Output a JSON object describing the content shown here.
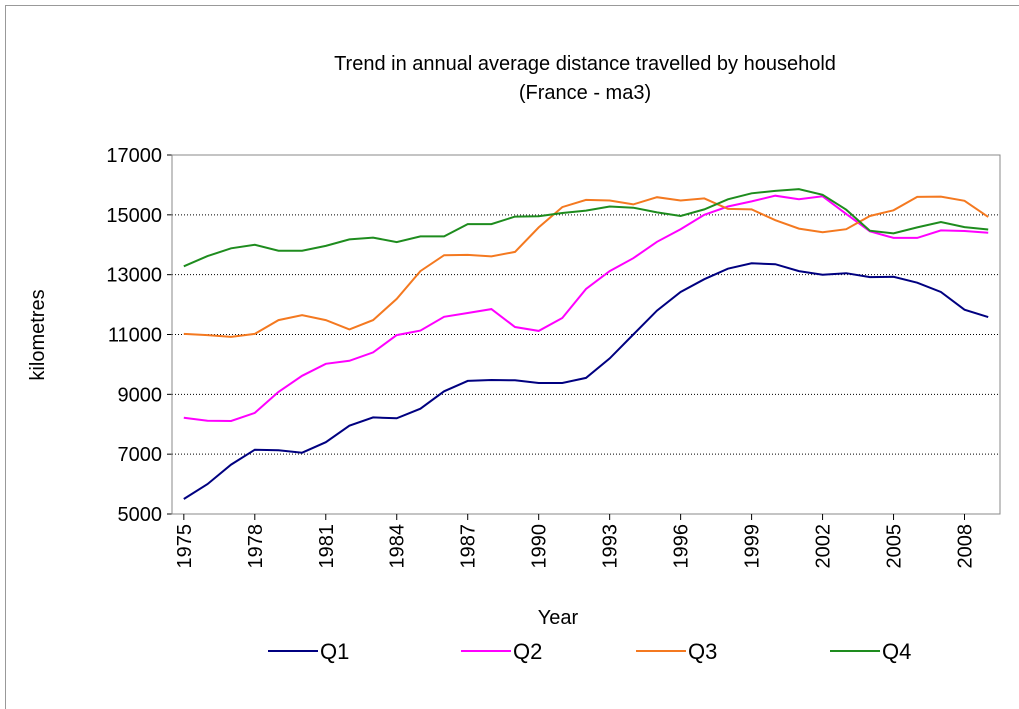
{
  "chart_data": {
    "type": "line",
    "title": "Trend in annual average distance travelled by household",
    "subtitle": "(France - ma3)",
    "x_label": "Year",
    "y_label": "kilometres",
    "x": [
      1975,
      1976,
      1977,
      1978,
      1979,
      1980,
      1981,
      1982,
      1983,
      1984,
      1985,
      1986,
      1987,
      1988,
      1989,
      1990,
      1991,
      1992,
      1993,
      1994,
      1995,
      1996,
      1997,
      1998,
      1999,
      2000,
      2001,
      2002,
      2003,
      2004,
      2005,
      2006,
      2007,
      2008,
      2009
    ],
    "xlim": [
      1974.5,
      2009.5
    ],
    "xticks": [
      1975,
      1978,
      1981,
      1984,
      1987,
      1990,
      1993,
      1996,
      1999,
      2002,
      2005,
      2008
    ],
    "ylim": [
      5000,
      17000
    ],
    "yticks": [
      5000,
      7000,
      9000,
      11000,
      13000,
      15000,
      17000
    ],
    "grid": true,
    "legend": "bottom",
    "series": [
      {
        "name": "Q1",
        "color": "#000080",
        "values": [
          5500,
          6000,
          6650,
          7150,
          7130,
          7050,
          7400,
          7950,
          8230,
          8200,
          8520,
          9100,
          9450,
          9480,
          9470,
          9380,
          9380,
          9550,
          10200,
          11000,
          11800,
          12420,
          12850,
          13200,
          13380,
          13350,
          13120,
          13000,
          13050,
          12920,
          12930,
          12730,
          12420,
          11830,
          11580
        ]
      },
      {
        "name": "Q2",
        "color": "#ff00ff",
        "values": [
          8220,
          8120,
          8110,
          8380,
          9080,
          9620,
          10020,
          10120,
          10400,
          10980,
          11130,
          11590,
          11720,
          11850,
          11250,
          11120,
          11550,
          12520,
          13120,
          13550,
          14100,
          14520,
          15000,
          15280,
          15450,
          15640,
          15520,
          15620,
          15030,
          14450,
          14230,
          14230,
          14480,
          14460,
          14400
        ]
      },
      {
        "name": "Q3",
        "color": "#f47920",
        "values": [
          11020,
          10980,
          10920,
          11020,
          11480,
          11650,
          11480,
          11170,
          11480,
          12190,
          13120,
          13650,
          13660,
          13610,
          13760,
          14580,
          15260,
          15500,
          15480,
          15350,
          15590,
          15480,
          15550,
          15200,
          15180,
          14820,
          14540,
          14420,
          14520,
          14960,
          15150,
          15600,
          15610,
          15470,
          14930
        ]
      },
      {
        "name": "Q4",
        "color": "#1e8c1e",
        "values": [
          13280,
          13620,
          13880,
          14000,
          13800,
          13800,
          13960,
          14180,
          14240,
          14090,
          14280,
          14280,
          14690,
          14690,
          14940,
          14950,
          15060,
          15140,
          15280,
          15240,
          15080,
          14960,
          15180,
          15520,
          15720,
          15800,
          15860,
          15670,
          15170,
          14470,
          14380,
          14580,
          14760,
          14590,
          14510
        ]
      }
    ]
  }
}
